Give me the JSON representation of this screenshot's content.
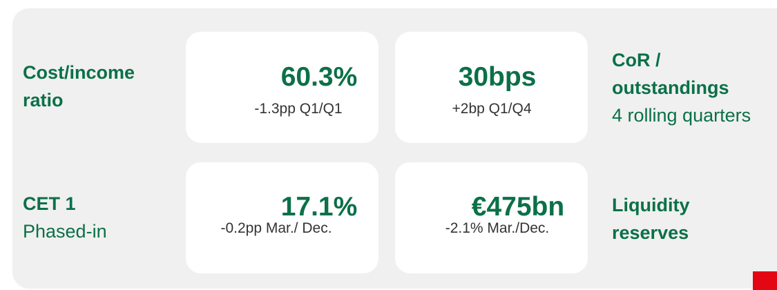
{
  "kpis": [
    {
      "label": [
        "Cost/income",
        "ratio"
      ],
      "value": "60.3%",
      "change": "-1.3pp Q1/Q1"
    },
    {
      "label": [
        "CoR /",
        "outstandings"
      ],
      "note": "4 rolling quarters",
      "value": "30bps",
      "change": "+2bp Q1/Q4"
    },
    {
      "label": [
        "CET 1"
      ],
      "note": "Phased-in",
      "value": "17.1%",
      "change": "-0.2pp Mar./ Dec."
    },
    {
      "label": [
        "Liquidity",
        "reserves"
      ],
      "value": "€475bn",
      "change": "-2.1% Mar./Dec."
    }
  ]
}
